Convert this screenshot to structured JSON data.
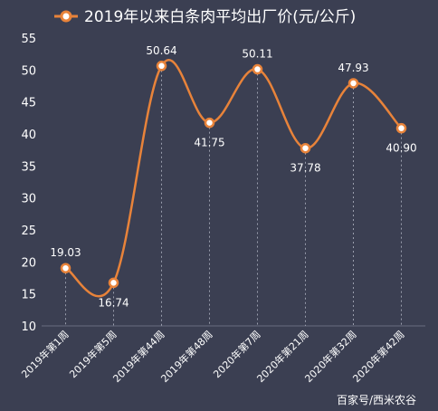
{
  "chart_data": {
    "type": "line",
    "legend": "2019年以来白条肉平均出厂价(元/公斤)",
    "categories": [
      "2019年第1周",
      "2019年第5周",
      "2019年第44周",
      "2019年第48周",
      "2020年第7周",
      "2020年第21周",
      "2020年第32周",
      "2020年第42周"
    ],
    "series": [
      {
        "name": "2019年以来白条肉平均出厂价(元/公斤)",
        "values": [
          19.03,
          16.74,
          50.64,
          41.75,
          50.11,
          37.78,
          47.93,
          40.9
        ],
        "labels": [
          "19.03",
          "16.74",
          "50.64",
          "41.75",
          "50.11",
          "37.78",
          "47.93",
          "40.90"
        ]
      }
    ],
    "ylim": [
      10,
      55
    ],
    "yticks": [
      "10",
      "15",
      "20",
      "25",
      "30",
      "35",
      "40",
      "45",
      "50",
      "55"
    ],
    "grid": "vertical dashed drop lines",
    "legend_position": "top",
    "colors": {
      "line": "#e8833a",
      "marker_fill": "#ffffff",
      "background": "#3b3f52"
    }
  },
  "watermark": "百家号/西米农谷"
}
